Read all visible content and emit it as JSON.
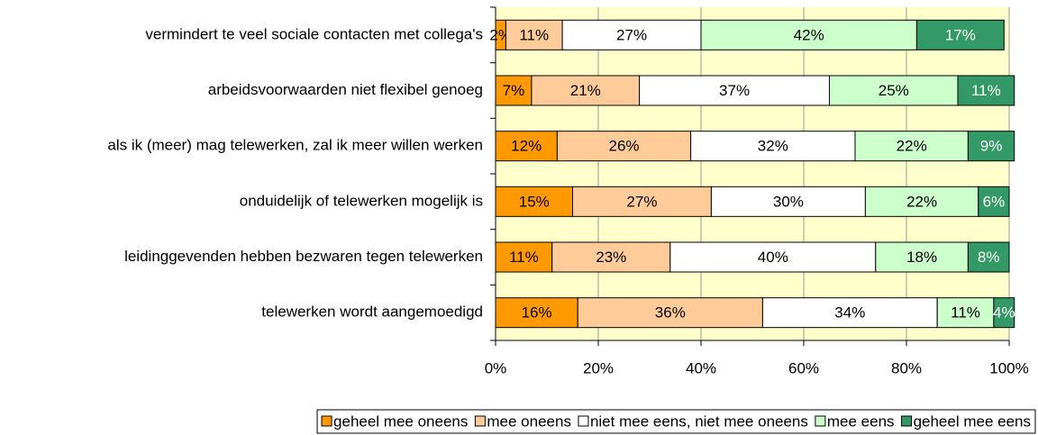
{
  "chart_data": {
    "type": "stacked_barh",
    "categories": [
      "vermindert te veel sociale contacten met collega's",
      "arbeidsvoorwaarden niet flexibel genoeg",
      "als ik (meer) mag telewerken, zal ik meer willen werken",
      "onduidelijk of telewerken mogelijk is",
      "leidinggevenden hebben bezwaren tegen telewerken",
      "telewerken wordt aangemoedigd"
    ],
    "series": [
      {
        "name": "geheel mee oneens",
        "color": "#ff9900",
        "values": [
          2,
          7,
          12,
          15,
          11,
          16
        ],
        "value_labels": [
          "2%",
          "7%",
          "12%",
          "15%",
          "11%",
          "16%"
        ]
      },
      {
        "name": "mee oneens",
        "color": "#ffcc99",
        "values": [
          11,
          21,
          26,
          27,
          23,
          36
        ],
        "value_labels": [
          "11%",
          "21%",
          "26%",
          "27%",
          "23%",
          "36%"
        ]
      },
      {
        "name": "niet mee eens, niet mee oneens",
        "color": "#ffffff",
        "values": [
          27,
          37,
          32,
          30,
          40,
          34
        ],
        "value_labels": [
          "27%",
          "37%",
          "32%",
          "30%",
          "40%",
          "34%"
        ]
      },
      {
        "name": "mee eens",
        "color": "#ccffcc",
        "values": [
          42,
          25,
          22,
          22,
          18,
          11
        ],
        "value_labels": [
          "42%",
          "25%",
          "22%",
          "22%",
          "18%",
          "11%"
        ]
      },
      {
        "name": "geheel mee eens",
        "color": "#339966",
        "values": [
          17,
          11,
          9,
          6,
          8,
          4
        ],
        "value_labels": [
          "17%",
          "11%",
          "9%",
          "6%",
          "8%",
          "4%"
        ]
      }
    ],
    "xlim": [
      0,
      100
    ],
    "xticks": [
      {
        "value": 0,
        "label": "0%"
      },
      {
        "value": 20,
        "label": "20%"
      },
      {
        "value": 40,
        "label": "40%"
      },
      {
        "value": 60,
        "label": "60%"
      },
      {
        "value": 80,
        "label": "80%"
      },
      {
        "value": 100,
        "label": "100%"
      }
    ],
    "grid": true,
    "legend": "bottom"
  }
}
